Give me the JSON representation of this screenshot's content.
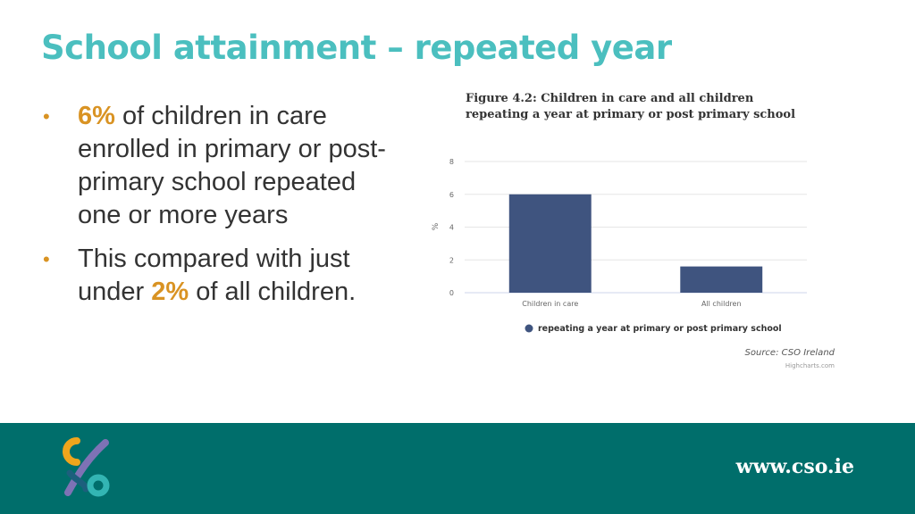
{
  "slide": {
    "title": "School attainment – repeated year",
    "bullets": [
      {
        "highlight": "6%",
        "text": " of children in care enrolled in primary or post-primary school repeated one or more years"
      },
      {
        "pre": "This compared with just under ",
        "highlight": "2%",
        "post": " of all children."
      }
    ],
    "highlight_color": "#d99323",
    "title_color": "#4bbfbf"
  },
  "chart_data": {
    "type": "bar",
    "title": "Figure 4.2: Children in care and all children repeating a year at primary or post primary school",
    "categories": [
      "Children in care",
      "All children"
    ],
    "series": [
      {
        "name": "repeating a year at primary or post primary school",
        "values": [
          6,
          1.6
        ],
        "color": "#3f547f"
      }
    ],
    "xlabel": "",
    "ylabel": "%",
    "ylim": [
      0,
      8
    ],
    "yticks": [
      0,
      2,
      4,
      6,
      8
    ],
    "grid": true,
    "legend": "bottom",
    "source": "Source: CSO Ireland",
    "credits": "Highcharts.com"
  },
  "footer": {
    "url": "www.cso.ie",
    "background": "#006e6b"
  }
}
